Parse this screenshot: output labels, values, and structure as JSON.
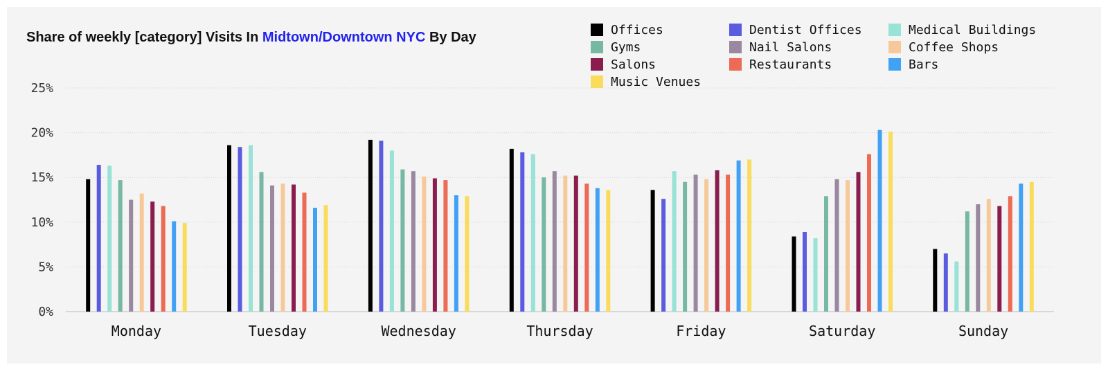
{
  "chart_data": {
    "type": "bar",
    "title": {
      "prefix": "Share of weekly [category] Visits In ",
      "highlight": "Midtown/Downtown NYC",
      "suffix": " By Day"
    },
    "xlabel": "",
    "ylabel": "",
    "ylim": [
      0,
      25
    ],
    "yticks": [
      0,
      5,
      10,
      15,
      20,
      25
    ],
    "ytick_labels": [
      "0%",
      "5%",
      "10%",
      "15%",
      "20%",
      "25%"
    ],
    "grid": true,
    "legend_position": "top-right",
    "categories": [
      "Monday",
      "Tuesday",
      "Wednesday",
      "Thursday",
      "Friday",
      "Saturday",
      "Sunday"
    ],
    "series": [
      {
        "name": "Offices",
        "color": "#000000",
        "values": [
          14.8,
          18.6,
          19.2,
          18.2,
          13.6,
          8.4,
          7.0
        ]
      },
      {
        "name": "Dentist Offices",
        "color": "#5b5bdf",
        "values": [
          16.4,
          18.4,
          19.1,
          17.8,
          12.6,
          8.9,
          6.5
        ]
      },
      {
        "name": "Medical Buildings",
        "color": "#98e2d6",
        "values": [
          16.3,
          18.6,
          18.0,
          17.6,
          15.7,
          8.2,
          5.6
        ]
      },
      {
        "name": "Gyms",
        "color": "#76b8a3",
        "values": [
          14.7,
          15.6,
          15.9,
          15.0,
          14.5,
          12.9,
          11.2
        ]
      },
      {
        "name": "Nail Salons",
        "color": "#9a87a0",
        "values": [
          12.5,
          14.1,
          15.7,
          15.7,
          15.3,
          14.8,
          12.0
        ]
      },
      {
        "name": "Coffee Shops",
        "color": "#f7c99a",
        "values": [
          13.2,
          14.3,
          15.1,
          15.2,
          14.8,
          14.7,
          12.6
        ]
      },
      {
        "name": "Salons",
        "color": "#8a1c4e",
        "values": [
          12.3,
          14.2,
          14.9,
          15.2,
          15.8,
          15.6,
          11.8
        ]
      },
      {
        "name": "Restaurants",
        "color": "#ed6a55",
        "values": [
          11.8,
          13.3,
          14.7,
          14.3,
          15.3,
          17.6,
          12.9
        ]
      },
      {
        "name": "Bars",
        "color": "#41a1f5",
        "values": [
          10.1,
          11.6,
          13.0,
          13.8,
          16.9,
          20.3,
          14.3
        ]
      },
      {
        "name": "Music Venues",
        "color": "#f9dc5c",
        "values": [
          9.9,
          11.9,
          12.9,
          13.6,
          17.0,
          20.1,
          14.5
        ]
      }
    ]
  }
}
